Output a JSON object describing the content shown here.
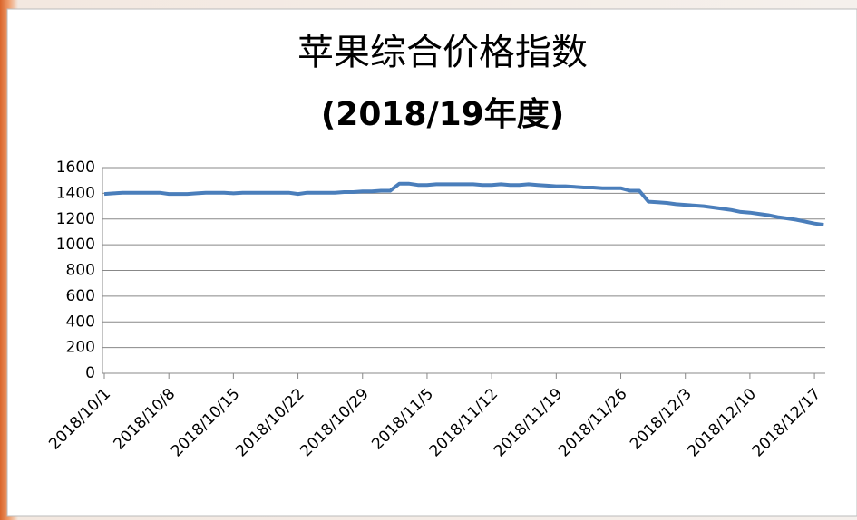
{
  "chart_data": {
    "type": "line",
    "title": "苹果综合价格指数",
    "subtitle": "(2018/19年度)",
    "categories": [
      "2018/10/1",
      null,
      null,
      null,
      null,
      null,
      null,
      "2018/10/8",
      null,
      null,
      null,
      null,
      null,
      null,
      "2018/10/15",
      null,
      null,
      null,
      null,
      null,
      null,
      "2018/10/22",
      null,
      null,
      null,
      null,
      null,
      null,
      "2018/10/29",
      null,
      null,
      null,
      null,
      null,
      null,
      "2018/11/5",
      null,
      null,
      null,
      null,
      null,
      null,
      "2018/11/12",
      null,
      null,
      null,
      null,
      null,
      null,
      "2018/11/19",
      null,
      null,
      null,
      null,
      null,
      null,
      "2018/11/26",
      null,
      null,
      null,
      null,
      null,
      null,
      "2018/12/3",
      null,
      null,
      null,
      null,
      null,
      null,
      "2018/12/10",
      null,
      null,
      null,
      null,
      null,
      null,
      "2018/12/17",
      null
    ],
    "values": [
      1395,
      1400,
      1405,
      1405,
      1405,
      1405,
      1405,
      1395,
      1395,
      1395,
      1400,
      1405,
      1405,
      1405,
      1400,
      1405,
      1405,
      1405,
      1405,
      1405,
      1405,
      1395,
      1405,
      1405,
      1405,
      1405,
      1410,
      1410,
      1415,
      1415,
      1420,
      1420,
      1475,
      1475,
      1465,
      1465,
      1470,
      1470,
      1470,
      1470,
      1470,
      1465,
      1465,
      1470,
      1465,
      1465,
      1470,
      1465,
      1460,
      1455,
      1455,
      1450,
      1445,
      1445,
      1440,
      1440,
      1440,
      1420,
      1420,
      1335,
      1330,
      1325,
      1315,
      1310,
      1305,
      1300,
      1290,
      1280,
      1270,
      1255,
      1250,
      1240,
      1230,
      1215,
      1205,
      1195,
      1180,
      1165,
      1155
    ],
    "color": "#4a7ebb",
    "ylim": [
      0,
      1600
    ],
    "yticks": [
      0,
      200,
      400,
      600,
      800,
      1000,
      1200,
      1400,
      1600
    ],
    "grid": true
  }
}
